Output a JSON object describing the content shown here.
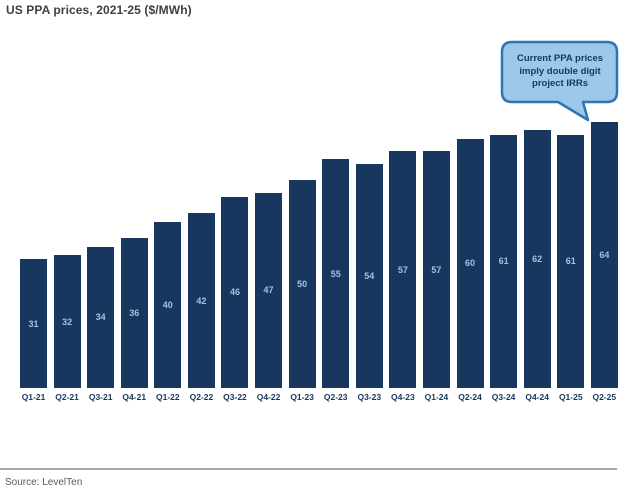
{
  "header": {
    "title": "US PPA prices, 2021-25 ($/MWh)"
  },
  "callout": {
    "line1": "Current PPA prices",
    "line2": "imply double digit",
    "line3": "project IRRs"
  },
  "footer": {
    "source": "Source: LevelTen"
  },
  "colors": {
    "bar": "#17375e",
    "bar_value_label": "#9dc3e6",
    "axis_label": "#17375e",
    "callout_fill": "#9dc8e8",
    "callout_border": "#2e75b6",
    "callout_text": "#17375e",
    "title_text": "#404040",
    "source_text": "#595959",
    "divider": "#a6a6a6"
  },
  "chart_data": {
    "type": "bar",
    "title": "US PPA prices, 2021-25 ($/MWh)",
    "categories": [
      "Q1-21",
      "Q2-21",
      "Q3-21",
      "Q4-21",
      "Q1-22",
      "Q2-22",
      "Q3-22",
      "Q4-22",
      "Q1-23",
      "Q2-23",
      "Q3-23",
      "Q4-23",
      "Q1-24",
      "Q2-24",
      "Q3-24",
      "Q4-24",
      "Q1-25",
      "Q2-25"
    ],
    "values": [
      31,
      32,
      34,
      36,
      40,
      42,
      46,
      47,
      50,
      55,
      54,
      57,
      57,
      60,
      61,
      62,
      61,
      64
    ],
    "xlabel": "",
    "ylabel": "$/MWh",
    "ylim": [
      0,
      64
    ],
    "grid": false,
    "legend": false,
    "value_labels_shown": true,
    "annotation": "Current PPA prices imply double digit project IRRs"
  }
}
